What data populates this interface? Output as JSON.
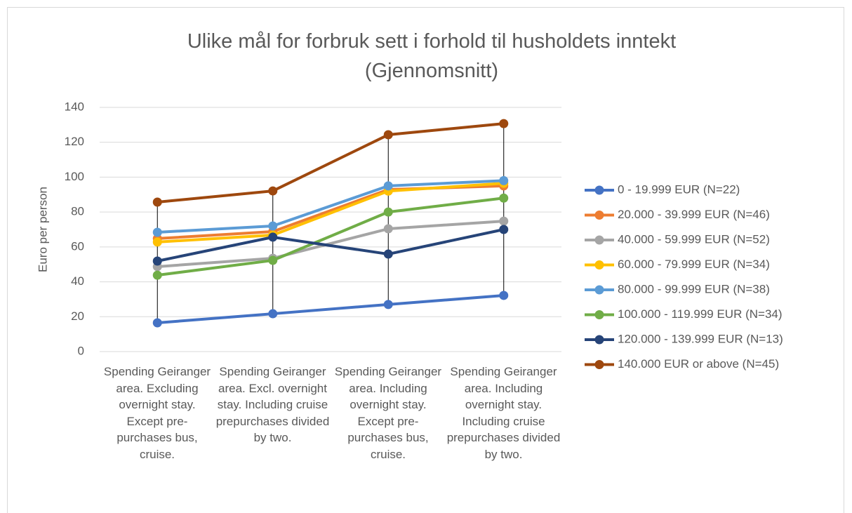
{
  "chart_data": {
    "type": "line",
    "title": "Ulike mål for forbruk sett i forhold til husholdets inntekt (Gjennomsnitt)",
    "y_label": "Euro per person",
    "categories": [
      "Spending Geiranger area. Excluding overnight stay. Except pre-purchases bus, cruise.",
      "Spending Geiranger area. Excl. overnight stay. Including cruise prepurchases divided by two.",
      "Spending Geiranger area. Including overnight stay. Except pre-purchases bus, cruise.",
      "Spending Geiranger area. Including overnight stay. Including cruise prepurchases divided by two."
    ],
    "series": [
      {
        "name": "0 - 19.999 EUR (N=22)",
        "color": "#4472c4",
        "values": [
          16.5,
          21.7,
          27,
          32.2
        ]
      },
      {
        "name": "20.000 - 39.999 EUR (N=46)",
        "color": "#ed7d31",
        "values": [
          64.8,
          68.8,
          92.9,
          95
        ]
      },
      {
        "name": "40.000 - 59.999 EUR (N=52)",
        "color": "#a5a5a5",
        "values": [
          48.7,
          53.5,
          70.4,
          74.8
        ]
      },
      {
        "name": "60.000 - 79.999 EUR (N=34)",
        "color": "#ffc000",
        "values": [
          62.8,
          66.8,
          92,
          96.5
        ]
      },
      {
        "name": "80.000 - 99.999 EUR (N=38)",
        "color": "#5b9bd5",
        "values": [
          68.4,
          72,
          95,
          98
        ]
      },
      {
        "name": "100.000 - 119.999 EUR (N=34)",
        "color": "#70ad47",
        "values": [
          43.8,
          52.3,
          80,
          88
        ]
      },
      {
        "name": "120.000 - 139.999 EUR (N=13)",
        "color": "#264478",
        "values": [
          51.9,
          65.6,
          55.9,
          70
        ]
      },
      {
        "name": "140.000 EUR or above (N=45)",
        "color": "#9e480e",
        "values": [
          85.7,
          92.1,
          124.3,
          130.7
        ]
      }
    ],
    "ylim": [
      0,
      140
    ],
    "yticks": [
      0,
      20,
      40,
      60,
      80,
      100,
      120,
      140
    ],
    "grid": true,
    "high_low_lines": true,
    "legend": "right"
  }
}
